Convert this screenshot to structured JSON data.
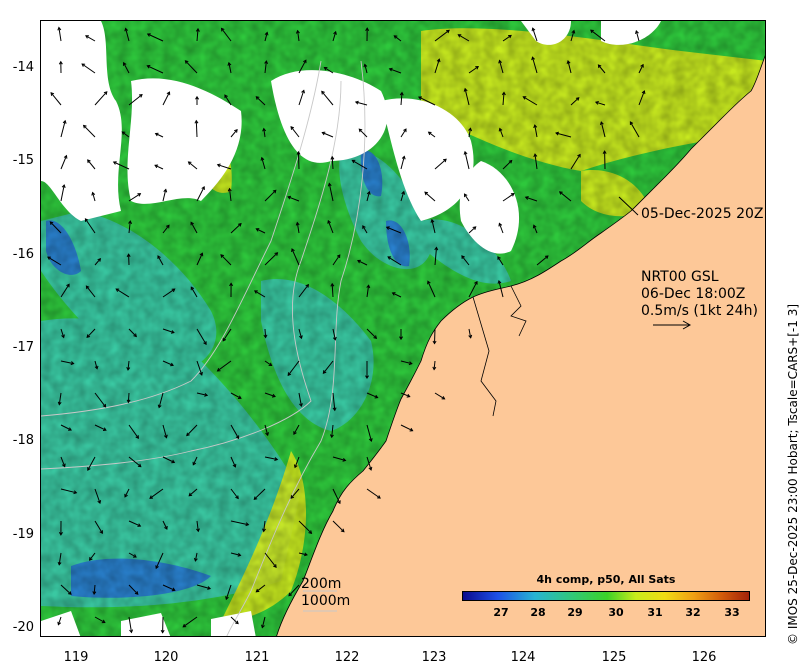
{
  "map": {
    "y_axis_labels": [
      "-14",
      "-15",
      "-16",
      "-17",
      "-18",
      "-19",
      "-20"
    ],
    "x_axis_labels": [
      "119",
      "120",
      "121",
      "122",
      "123",
      "124",
      "125",
      "126"
    ],
    "pass_label": "05-Dec-2025 20Z",
    "current_label": {
      "line1": "NRT00 GSL",
      "line2": "06-Dec 18:00Z",
      "line3": "0.5m/s (1kt 24h)"
    },
    "depth_labels": {
      "shallow": "200m",
      "deep": "1000m"
    },
    "credit": "© IMOS 25-Dec-2025 23:00 Hobart; Tscale=CARS+[-1 3]",
    "colorbar": {
      "title": "4h comp, p50, All Sats",
      "ticks": [
        "27",
        "28",
        "29",
        "30",
        "31",
        "32",
        "33"
      ]
    },
    "colors": {
      "land": "#fdc898",
      "cloud": "#ffffff",
      "sst_green": "#2ec83c",
      "sst_cyan": "#3cc8c8",
      "sst_yellow": "#d8ec1c"
    }
  }
}
